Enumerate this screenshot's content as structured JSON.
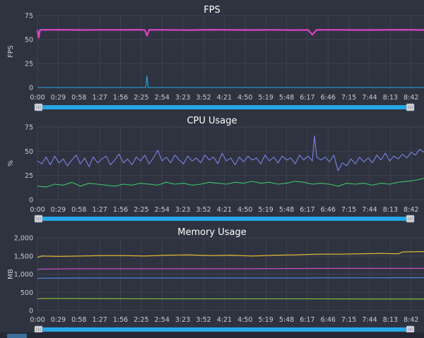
{
  "colors": {
    "background": "#2f3340",
    "grid": "#3d4252",
    "slider": "#26a6e8",
    "fps_main": "#dd44c6",
    "fps_low": "#26a6e8",
    "cpu_total": "#7a84e6",
    "cpu_app": "#3ec46d",
    "mem_yellow": "#f2c230",
    "mem_pink": "#d94ecf",
    "mem_blue": "#4a8fe6",
    "mem_green": "#8ccc3a"
  },
  "chart_data": [
    {
      "id": "fps",
      "type": "line",
      "title": "FPS",
      "ylabel": "FPS",
      "xlabel": "",
      "ylim": [
        0,
        75
      ],
      "yticks": [
        "0",
        "25",
        "50",
        "75"
      ],
      "xlim": [
        0,
        9.0
      ],
      "xticks": [
        "0:00",
        "0:29",
        "0:58",
        "1:27",
        "1:56",
        "2:25",
        "2:54",
        "3:23",
        "3:52",
        "4:21",
        "4:50",
        "5:19",
        "5:48",
        "6:17",
        "6:46",
        "7:15",
        "7:44",
        "8:13",
        "8:42"
      ],
      "grid": true,
      "series": [
        {
          "color": "#dd44c6",
          "points": [
            [
              0.0,
              59.8
            ],
            [
              0.03,
              52
            ],
            [
              0.06,
              60
            ],
            [
              0.5,
              60.2
            ],
            [
              1.0,
              59.9
            ],
            [
              1.5,
              60.1
            ],
            [
              2.0,
              60
            ],
            [
              2.3,
              60.2
            ],
            [
              2.5,
              59.9
            ],
            [
              2.55,
              54
            ],
            [
              2.6,
              60
            ],
            [
              3.0,
              60.1
            ],
            [
              3.5,
              59.8
            ],
            [
              4.0,
              60.2
            ],
            [
              4.5,
              60
            ],
            [
              5.0,
              59.9
            ],
            [
              5.5,
              60.1
            ],
            [
              6.0,
              59.8
            ],
            [
              6.3,
              60
            ],
            [
              6.4,
              55
            ],
            [
              6.5,
              60
            ],
            [
              7.0,
              60.1
            ],
            [
              7.5,
              59.9
            ],
            [
              8.0,
              60
            ],
            [
              8.5,
              60.2
            ],
            [
              9.0,
              59.9
            ]
          ]
        },
        {
          "color": "#26a6e8",
          "points": [
            [
              0.0,
              0
            ],
            [
              2.52,
              0
            ],
            [
              2.55,
              12
            ],
            [
              2.58,
              0
            ],
            [
              9.0,
              0
            ]
          ]
        }
      ]
    },
    {
      "id": "cpu",
      "type": "line",
      "title": "CPU Usage",
      "ylabel": "%",
      "xlabel": "",
      "ylim": [
        0,
        75
      ],
      "yticks": [
        "0",
        "25",
        "50",
        "75"
      ],
      "xlim": [
        0,
        9.0
      ],
      "xticks": [
        "0:00",
        "0:29",
        "0:58",
        "1:27",
        "1:56",
        "2:25",
        "2:54",
        "3:23",
        "3:52",
        "4:21",
        "4:50",
        "5:19",
        "5:48",
        "6:17",
        "6:46",
        "7:15",
        "7:44",
        "8:13",
        "8:42"
      ],
      "grid": true,
      "series": [
        {
          "color": "#7a84e6",
          "points": [
            [
              0.0,
              40
            ],
            [
              0.1,
              37
            ],
            [
              0.2,
              44
            ],
            [
              0.3,
              36
            ],
            [
              0.4,
              45
            ],
            [
              0.5,
              38
            ],
            [
              0.6,
              42
            ],
            [
              0.7,
              35
            ],
            [
              0.8,
              41
            ],
            [
              0.9,
              46
            ],
            [
              1.0,
              37
            ],
            [
              1.1,
              43
            ],
            [
              1.2,
              34
            ],
            [
              1.3,
              44
            ],
            [
              1.4,
              38
            ],
            [
              1.5,
              42
            ],
            [
              1.6,
              45
            ],
            [
              1.7,
              36
            ],
            [
              1.8,
              41
            ],
            [
              1.9,
              47
            ],
            [
              2.0,
              38
            ],
            [
              2.1,
              42
            ],
            [
              2.2,
              36
            ],
            [
              2.3,
              44
            ],
            [
              2.4,
              40
            ],
            [
              2.5,
              46
            ],
            [
              2.6,
              37
            ],
            [
              2.7,
              43
            ],
            [
              2.8,
              51
            ],
            [
              2.9,
              40
            ],
            [
              3.0,
              44
            ],
            [
              3.1,
              38
            ],
            [
              3.2,
              46
            ],
            [
              3.3,
              41
            ],
            [
              3.4,
              37
            ],
            [
              3.5,
              45
            ],
            [
              3.6,
              40
            ],
            [
              3.7,
              43
            ],
            [
              3.8,
              38
            ],
            [
              3.9,
              46
            ],
            [
              4.0,
              41
            ],
            [
              4.1,
              44
            ],
            [
              4.2,
              37
            ],
            [
              4.3,
              48
            ],
            [
              4.4,
              40
            ],
            [
              4.5,
              43
            ],
            [
              4.6,
              36
            ],
            [
              4.7,
              44
            ],
            [
              4.8,
              39
            ],
            [
              4.9,
              45
            ],
            [
              5.0,
              41
            ],
            [
              5.1,
              43
            ],
            [
              5.2,
              37
            ],
            [
              5.3,
              46
            ],
            [
              5.4,
              40
            ],
            [
              5.5,
              44
            ],
            [
              5.6,
              38
            ],
            [
              5.7,
              45
            ],
            [
              5.8,
              41
            ],
            [
              5.9,
              43
            ],
            [
              6.0,
              37
            ],
            [
              6.1,
              46
            ],
            [
              6.2,
              41
            ],
            [
              6.3,
              45
            ],
            [
              6.4,
              40
            ],
            [
              6.45,
              66
            ],
            [
              6.5,
              44
            ],
            [
              6.6,
              41
            ],
            [
              6.7,
              44
            ],
            [
              6.8,
              39
            ],
            [
              6.9,
              46
            ],
            [
              7.0,
              30
            ],
            [
              7.1,
              38
            ],
            [
              7.2,
              35
            ],
            [
              7.3,
              42
            ],
            [
              7.4,
              37
            ],
            [
              7.5,
              44
            ],
            [
              7.6,
              39
            ],
            [
              7.7,
              43
            ],
            [
              7.8,
              38
            ],
            [
              7.9,
              46
            ],
            [
              8.0,
              41
            ],
            [
              8.1,
              48
            ],
            [
              8.2,
              40
            ],
            [
              8.3,
              45
            ],
            [
              8.4,
              42
            ],
            [
              8.5,
              47
            ],
            [
              8.6,
              43
            ],
            [
              8.7,
              49
            ],
            [
              8.8,
              46
            ],
            [
              8.9,
              52
            ],
            [
              9.0,
              49
            ]
          ]
        },
        {
          "color": "#3ec46d",
          "points": [
            [
              0.0,
              14
            ],
            [
              0.2,
              13
            ],
            [
              0.4,
              16
            ],
            [
              0.6,
              15
            ],
            [
              0.8,
              18
            ],
            [
              1.0,
              14
            ],
            [
              1.2,
              17
            ],
            [
              1.4,
              16
            ],
            [
              1.6,
              15
            ],
            [
              1.8,
              14
            ],
            [
              2.0,
              16
            ],
            [
              2.2,
              15
            ],
            [
              2.4,
              17
            ],
            [
              2.6,
              16
            ],
            [
              2.8,
              15
            ],
            [
              3.0,
              18
            ],
            [
              3.2,
              16
            ],
            [
              3.4,
              17
            ],
            [
              3.6,
              15
            ],
            [
              3.8,
              16
            ],
            [
              4.0,
              18
            ],
            [
              4.2,
              17
            ],
            [
              4.4,
              16
            ],
            [
              4.6,
              18
            ],
            [
              4.8,
              17
            ],
            [
              5.0,
              19
            ],
            [
              5.2,
              17
            ],
            [
              5.4,
              18
            ],
            [
              5.6,
              16
            ],
            [
              5.8,
              17
            ],
            [
              6.0,
              19
            ],
            [
              6.2,
              18
            ],
            [
              6.4,
              16
            ],
            [
              6.6,
              17
            ],
            [
              6.8,
              16
            ],
            [
              7.0,
              14
            ],
            [
              7.2,
              17
            ],
            [
              7.4,
              16
            ],
            [
              7.6,
              17
            ],
            [
              7.8,
              15
            ],
            [
              8.0,
              17
            ],
            [
              8.2,
              16
            ],
            [
              8.4,
              18
            ],
            [
              8.6,
              19
            ],
            [
              8.8,
              20
            ],
            [
              9.0,
              22
            ]
          ]
        }
      ]
    },
    {
      "id": "memory",
      "type": "line",
      "title": "Memory Usage",
      "ylabel": "MB",
      "xlabel": "",
      "ylim": [
        0,
        2000
      ],
      "yticks": [
        "0",
        "500",
        "1,000",
        "1,500",
        "2,000"
      ],
      "xlim": [
        0,
        9.0
      ],
      "xticks": [
        "0:00",
        "0:29",
        "0:58",
        "1:27",
        "1:56",
        "2:25",
        "2:54",
        "3:23",
        "3:52",
        "4:21",
        "4:50",
        "5:19",
        "5:48",
        "6:17",
        "6:46",
        "7:15",
        "7:44",
        "8:13",
        "8:42"
      ],
      "grid": true,
      "series": [
        {
          "color": "#f2c230",
          "points": [
            [
              0.0,
              1460
            ],
            [
              0.1,
              1500
            ],
            [
              0.5,
              1490
            ],
            [
              1.0,
              1500
            ],
            [
              1.5,
              1510
            ],
            [
              2.0,
              1510
            ],
            [
              2.5,
              1500
            ],
            [
              3.0,
              1520
            ],
            [
              3.5,
              1530
            ],
            [
              4.0,
              1510
            ],
            [
              4.5,
              1520
            ],
            [
              5.0,
              1500
            ],
            [
              5.5,
              1520
            ],
            [
              6.0,
              1530
            ],
            [
              6.5,
              1550
            ],
            [
              7.0,
              1550
            ],
            [
              7.5,
              1560
            ],
            [
              8.0,
              1570
            ],
            [
              8.4,
              1560
            ],
            [
              8.5,
              1610
            ],
            [
              9.0,
              1620
            ]
          ]
        },
        {
          "color": "#d94ecf",
          "points": [
            [
              0.0,
              1130
            ],
            [
              0.1,
              1140
            ],
            [
              1.0,
              1150
            ],
            [
              3.0,
              1150
            ],
            [
              5.0,
              1150
            ],
            [
              7.0,
              1160
            ],
            [
              8.5,
              1160
            ],
            [
              9.0,
              1160
            ]
          ]
        },
        {
          "color": "#4a8fe6",
          "points": [
            [
              0.0,
              880
            ],
            [
              0.1,
              890
            ],
            [
              3.0,
              895
            ],
            [
              6.0,
              895
            ],
            [
              9.0,
              900
            ]
          ]
        },
        {
          "color": "#8ccc3a",
          "points": [
            [
              0.0,
              320
            ],
            [
              0.1,
              330
            ],
            [
              3.0,
              320
            ],
            [
              6.0,
              320
            ],
            [
              9.0,
              315
            ]
          ]
        }
      ]
    }
  ]
}
